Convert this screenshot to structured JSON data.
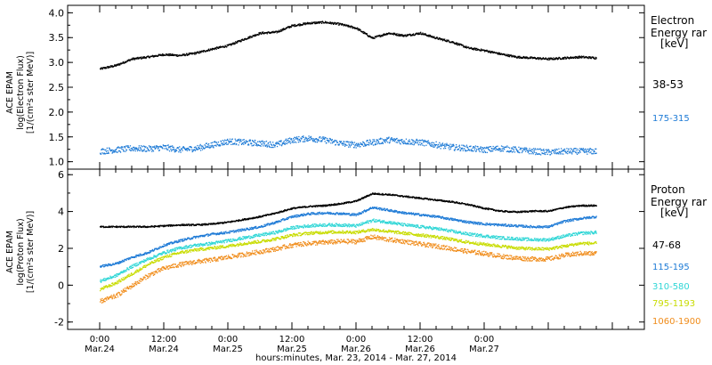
{
  "chart_data": [
    {
      "type": "scatter",
      "panel": "electron",
      "ylabel_lines": [
        "ACE EPAM",
        "log(Electron Flux)",
        "[1/(cm²s ster MeV)]"
      ],
      "legend_title_lines": [
        "Electron",
        "Energy rar",
        "[keV]"
      ],
      "ylim": [
        0.85,
        4.15
      ],
      "yticks": [
        1.0,
        1.5,
        2.0,
        2.5,
        3.0,
        3.5,
        4.0
      ],
      "ytick_labels": [
        "1.0",
        "1.5",
        "2.0",
        "2.5",
        "3.0",
        "3.5",
        "4.0"
      ],
      "x": [
        0,
        3,
        6,
        9,
        12,
        15,
        18,
        21,
        24,
        27,
        30,
        33,
        36,
        39,
        42,
        45,
        48,
        51,
        54,
        57,
        60,
        63,
        66,
        69,
        72,
        75,
        78,
        81,
        84,
        87,
        90,
        93
      ],
      "series": [
        {
          "name": "38-53",
          "color": "#000000",
          "noise": 0.02,
          "values": [
            2.88,
            2.95,
            3.08,
            3.12,
            3.17,
            3.15,
            3.2,
            3.28,
            3.35,
            3.48,
            3.6,
            3.62,
            3.75,
            3.8,
            3.82,
            3.78,
            3.7,
            3.5,
            3.6,
            3.55,
            3.6,
            3.5,
            3.42,
            3.3,
            3.25,
            3.18,
            3.12,
            3.1,
            3.08,
            3.1,
            3.12,
            3.1
          ]
        },
        {
          "name": "175-315",
          "color": "#1e7bd6",
          "noise": 0.06,
          "values": [
            1.22,
            1.25,
            1.28,
            1.27,
            1.3,
            1.25,
            1.28,
            1.35,
            1.42,
            1.4,
            1.38,
            1.35,
            1.45,
            1.48,
            1.45,
            1.38,
            1.35,
            1.4,
            1.45,
            1.42,
            1.4,
            1.35,
            1.3,
            1.28,
            1.25,
            1.28,
            1.25,
            1.22,
            1.2,
            1.22,
            1.22,
            1.22
          ]
        }
      ]
    },
    {
      "type": "scatter",
      "panel": "proton",
      "ylabel_lines": [
        "ACE EPAM",
        "log(Proton Flux)",
        "[1/(cm²s ster MeV)]"
      ],
      "legend_title_lines": [
        "Proton",
        "Energy rar",
        "[keV]"
      ],
      "ylim": [
        -2.4,
        6.3
      ],
      "yticks": [
        -2,
        0,
        2,
        4,
        6
      ],
      "ytick_labels": [
        "-2",
        "0",
        "2",
        "4",
        "6"
      ],
      "x": [
        0,
        3,
        6,
        9,
        12,
        15,
        18,
        21,
        24,
        27,
        30,
        33,
        36,
        39,
        42,
        45,
        48,
        51,
        54,
        57,
        60,
        63,
        66,
        69,
        72,
        75,
        78,
        81,
        84,
        87,
        90,
        93
      ],
      "series": [
        {
          "name": "47-68",
          "color": "#000000",
          "noise": 0.04,
          "values": [
            3.2,
            3.2,
            3.2,
            3.2,
            3.25,
            3.3,
            3.3,
            3.35,
            3.45,
            3.6,
            3.75,
            3.95,
            4.2,
            4.3,
            4.35,
            4.45,
            4.6,
            5.0,
            4.95,
            4.85,
            4.75,
            4.65,
            4.55,
            4.4,
            4.2,
            4.05,
            4.0,
            4.05,
            4.05,
            4.25,
            4.35,
            4.35
          ]
        },
        {
          "name": "115-195",
          "color": "#1e7bd6",
          "noise": 0.06,
          "values": [
            1.05,
            1.2,
            1.55,
            1.8,
            2.2,
            2.45,
            2.65,
            2.8,
            2.9,
            3.05,
            3.2,
            3.45,
            3.75,
            3.9,
            3.95,
            3.92,
            3.85,
            4.25,
            4.1,
            3.95,
            3.85,
            3.75,
            3.6,
            3.45,
            3.35,
            3.3,
            3.25,
            3.2,
            3.2,
            3.5,
            3.65,
            3.75
          ]
        },
        {
          "name": "310-580",
          "color": "#2fd6d6",
          "noise": 0.08,
          "values": [
            0.25,
            0.55,
            1.05,
            1.45,
            1.8,
            2.05,
            2.2,
            2.3,
            2.45,
            2.6,
            2.75,
            2.9,
            3.15,
            3.25,
            3.3,
            3.3,
            3.25,
            3.55,
            3.45,
            3.3,
            3.2,
            3.1,
            2.95,
            2.8,
            2.7,
            2.6,
            2.55,
            2.5,
            2.5,
            2.7,
            2.85,
            2.9
          ]
        },
        {
          "name": "795-1193",
          "color": "#c8dc00",
          "noise": 0.08,
          "values": [
            -0.2,
            0.15,
            0.65,
            1.15,
            1.55,
            1.8,
            1.95,
            2.05,
            2.15,
            2.3,
            2.4,
            2.55,
            2.75,
            2.85,
            2.9,
            2.92,
            2.9,
            3.05,
            2.95,
            2.85,
            2.75,
            2.65,
            2.5,
            2.35,
            2.25,
            2.15,
            2.05,
            2.0,
            2.0,
            2.15,
            2.3,
            2.3
          ]
        },
        {
          "name": "1060-1900",
          "color": "#f08c1a",
          "noise": 0.12,
          "values": [
            -0.85,
            -0.55,
            0.0,
            0.55,
            0.95,
            1.15,
            1.3,
            1.4,
            1.55,
            1.7,
            1.85,
            2.0,
            2.2,
            2.3,
            2.35,
            2.4,
            2.4,
            2.65,
            2.5,
            2.4,
            2.25,
            2.15,
            2.0,
            1.85,
            1.75,
            1.6,
            1.5,
            1.45,
            1.45,
            1.65,
            1.75,
            1.75
          ]
        }
      ]
    }
  ],
  "x_axis": {
    "range_hours": [
      -6,
      102
    ],
    "major_ticks": [
      0,
      12,
      24,
      36,
      48,
      60,
      72,
      84,
      96
    ],
    "minor_ticks": [
      3,
      6,
      9,
      15,
      18,
      21,
      27,
      30,
      33,
      39,
      42,
      45,
      51,
      54,
      57,
      63,
      66,
      69,
      75,
      78,
      81,
      87,
      90,
      93,
      99
    ],
    "tick_time_labels": [
      "0:00",
      "12:00",
      "0:00",
      "12:00",
      "0:00",
      "12:00",
      "0:00"
    ],
    "tick_date_labels": [
      "Mar.24",
      "Mar.24",
      "Mar.25",
      "Mar.25",
      "Mar.26",
      "Mar.26",
      "Mar.27"
    ],
    "title": "hours:minutes, Mar. 23, 2014 - Mar. 27, 2014"
  }
}
